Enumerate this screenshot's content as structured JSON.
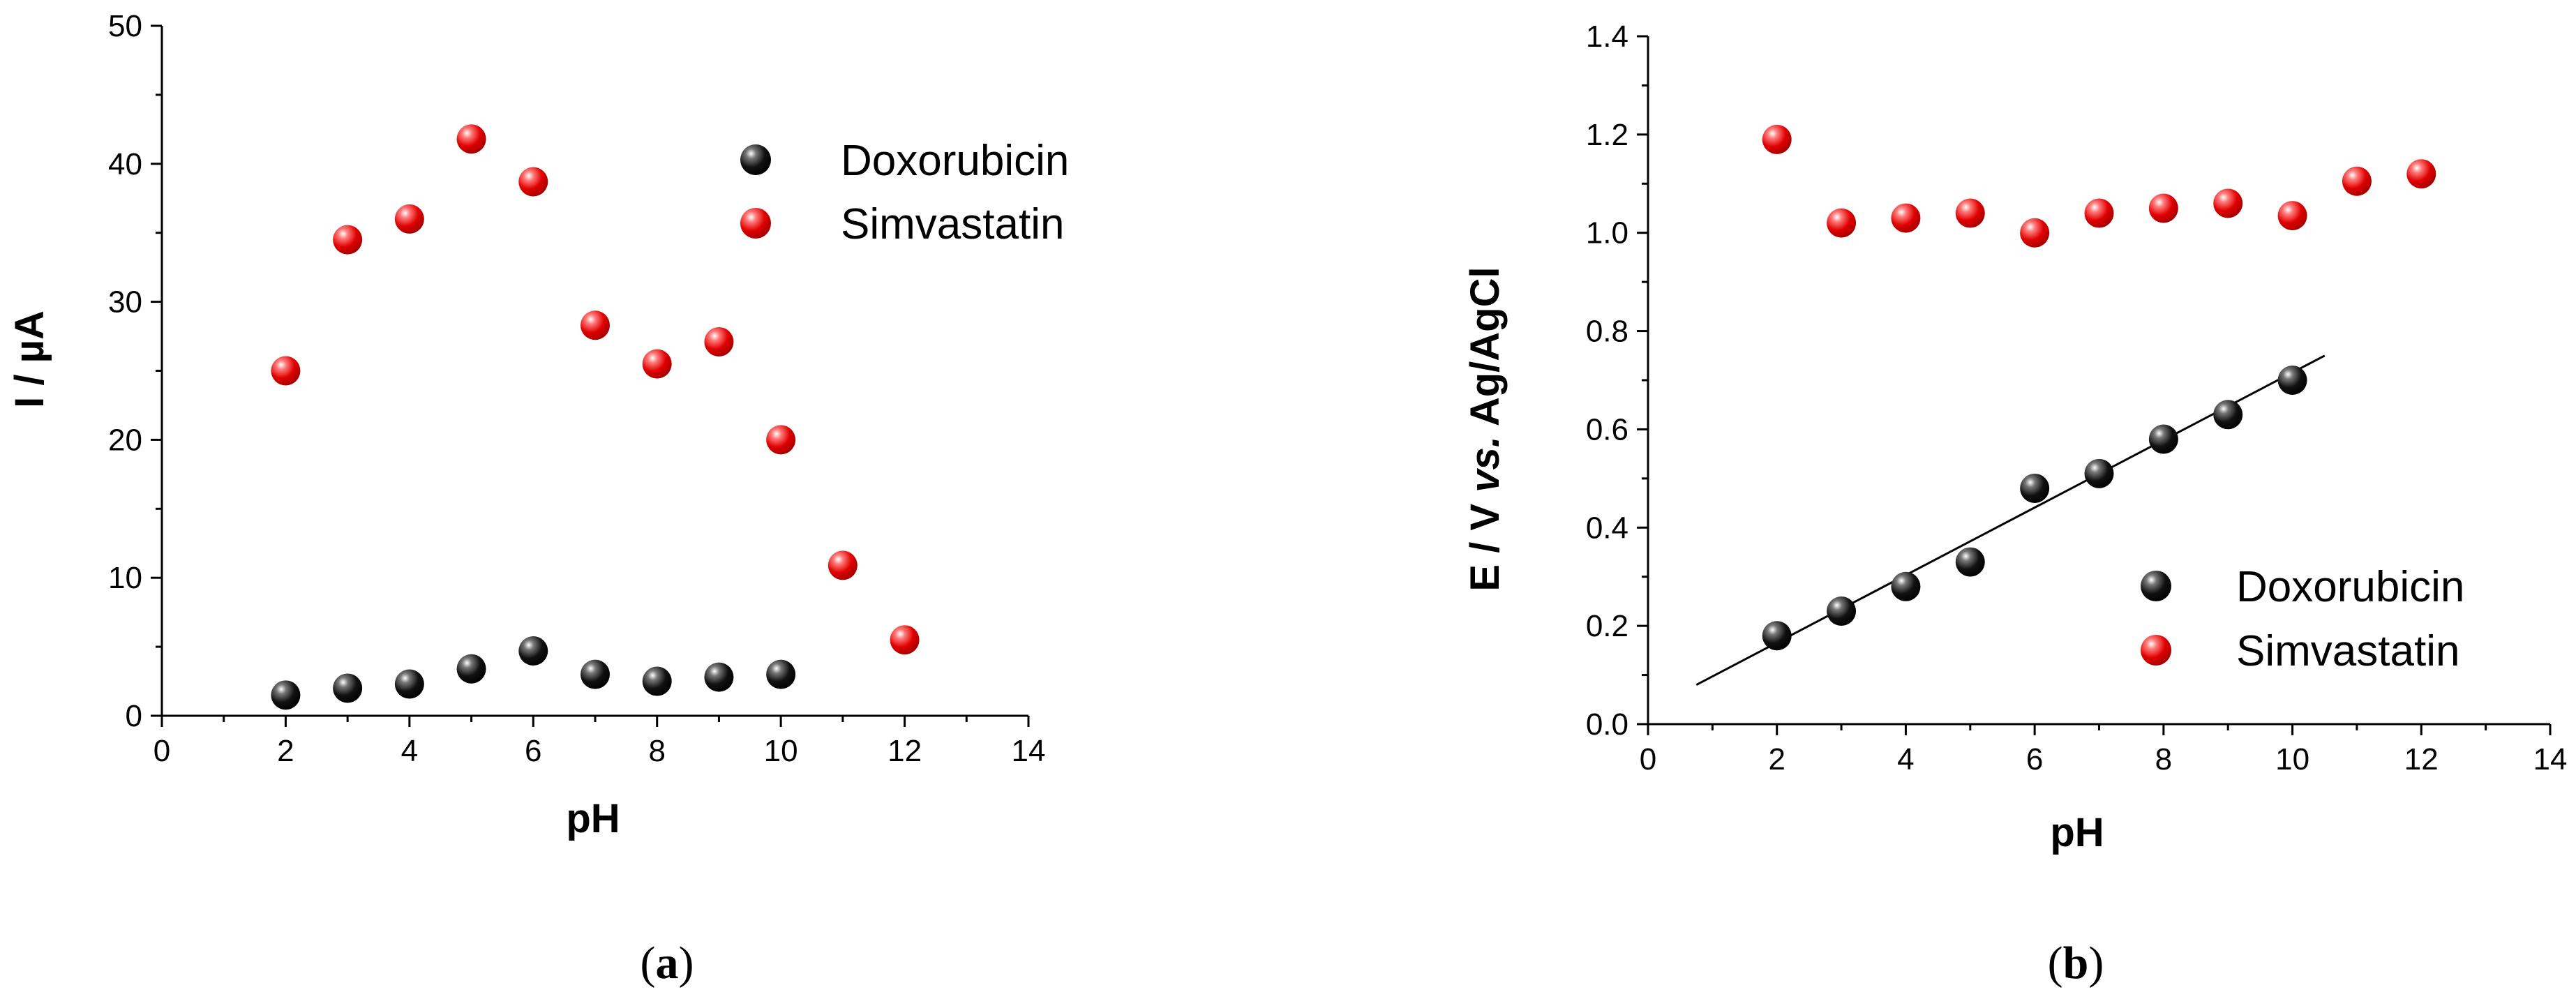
{
  "chart_data": [
    {
      "type": "scatter",
      "panel_label": "a",
      "xlabel": "pH",
      "ylabel": "I / µA",
      "xlim": [
        0,
        14
      ],
      "ylim": [
        0,
        50
      ],
      "xticks": [
        0,
        2,
        4,
        6,
        8,
        10,
        12,
        14
      ],
      "yticks": [
        0,
        10,
        20,
        30,
        40,
        50
      ],
      "legend_position": "top-right",
      "series": [
        {
          "name": "Doxorubicin",
          "color": "#111111",
          "x": [
            2,
            3,
            4,
            5,
            6,
            7,
            8,
            9,
            10
          ],
          "y": [
            1.5,
            2.0,
            2.3,
            3.4,
            4.7,
            3.0,
            2.5,
            2.8,
            3.0
          ]
        },
        {
          "name": "Simvastatin",
          "color": "#e00000",
          "x": [
            2,
            3,
            4,
            5,
            6,
            7,
            8,
            9,
            10,
            11,
            12
          ],
          "y": [
            25.0,
            34.5,
            36.0,
            41.8,
            38.7,
            28.3,
            25.5,
            27.1,
            20.0,
            10.9,
            5.5
          ]
        }
      ]
    },
    {
      "type": "scatter",
      "panel_label": "b",
      "xlabel": "pH",
      "ylabel": "E / V vs. Ag/AgCl",
      "ylabel_parts": {
        "prefix": "E / V ",
        "italic": "vs.",
        "suffix": " Ag/AgCl"
      },
      "xlim": [
        0,
        14
      ],
      "ylim": [
        0,
        1.4
      ],
      "xticks": [
        0,
        2,
        4,
        6,
        8,
        10,
        12,
        14
      ],
      "yticks": [
        0.0,
        0.2,
        0.4,
        0.6,
        0.8,
        1.0,
        1.2,
        1.4
      ],
      "ytick_labels": [
        "0.0",
        "0.2",
        "0.4",
        "0.6",
        "0.8",
        "1.0",
        "1.2",
        "1.4"
      ],
      "legend_position": "bottom-right",
      "fit_line": {
        "series": "Doxorubicin",
        "x": [
          0.75,
          10.5
        ],
        "y": [
          0.08,
          0.75
        ]
      },
      "series": [
        {
          "name": "Doxorubicin",
          "color": "#111111",
          "x": [
            2,
            3,
            4,
            5,
            6,
            7,
            8,
            9,
            10
          ],
          "y": [
            0.18,
            0.23,
            0.28,
            0.33,
            0.48,
            0.51,
            0.58,
            0.63,
            0.7
          ]
        },
        {
          "name": "Simvastatin",
          "color": "#e00000",
          "x": [
            2,
            3,
            4,
            5,
            6,
            7,
            8,
            9,
            10,
            11,
            12
          ],
          "y": [
            1.19,
            1.02,
            1.03,
            1.04,
            1.0,
            1.04,
            1.05,
            1.06,
            1.035,
            1.105,
            1.12
          ]
        }
      ]
    }
  ]
}
